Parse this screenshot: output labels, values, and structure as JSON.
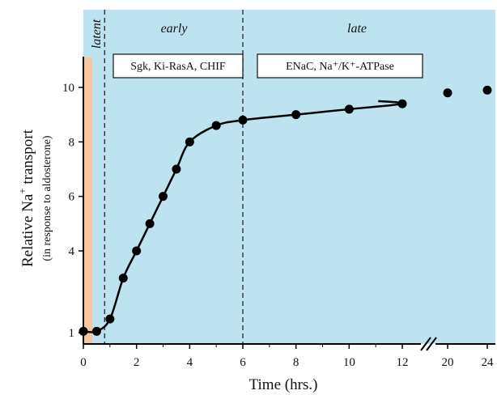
{
  "chart_data": {
    "type": "line",
    "xlabel": "Time (hrs.)",
    "ylabel": "Relative Na",
    "ylabel_sup": "+",
    "ylabel_rest": " transport",
    "ylabel_sub": "(in response to aldosterone)",
    "x_ticks": [
      0,
      2,
      4,
      6,
      8,
      10,
      12,
      20,
      24
    ],
    "y_ticks": [
      1,
      4,
      6,
      8,
      10
    ],
    "xlim": [
      0,
      24
    ],
    "ylim": [
      0.8,
      11
    ],
    "x_axis_break_between": [
      12,
      20
    ],
    "phases": [
      {
        "label": "latent",
        "x_start": 0,
        "x_end": 0.4,
        "color": "#f4c79c"
      },
      {
        "label": "early",
        "x_start": 0.8,
        "x_end": 6,
        "color": "#bde2f0"
      },
      {
        "label": "late",
        "x_start": 6,
        "x_end": 24,
        "color": "#bde2f0"
      }
    ],
    "phase_boundaries": [
      0.8,
      6
    ],
    "annotations": [
      {
        "text": "Sgk, Ki-RasA, CHIF",
        "x_start": 1.1,
        "x_end": 5.9
      },
      {
        "text": "ENaC, Na⁺/K⁺-ATPase",
        "x_start": 6.5,
        "x_end": 14.5
      }
    ],
    "series": [
      {
        "x": [
          0,
          0.5,
          1,
          1.5,
          2,
          2.5,
          3,
          3.5,
          4,
          5,
          6,
          8,
          10,
          12,
          20,
          24
        ],
        "y": [
          1.05,
          1.05,
          1.5,
          3.0,
          4.0,
          5.0,
          6.0,
          7.0,
          8.0,
          8.6,
          8.8,
          9.0,
          9.2,
          9.4,
          9.8,
          9.9
        ]
      }
    ],
    "colors": {
      "late_bg": "#bde2f0",
      "latent_bar": "#f4c79c",
      "marker": "#000000",
      "line": "#000000"
    }
  }
}
